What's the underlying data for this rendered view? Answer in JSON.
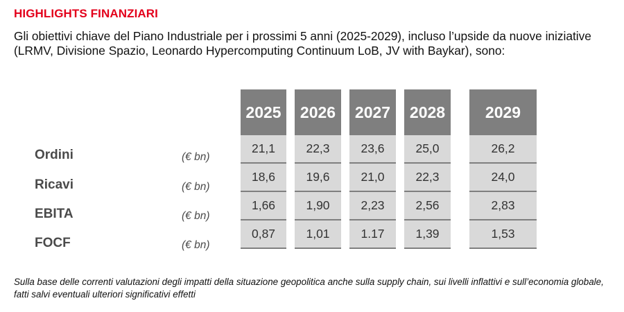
{
  "header": {
    "title": "HIGHLIGHTS FINANZIARI",
    "intro": "Gli obiettivi chiave del Piano Industriale per i prossimi 5 anni (2025-2029), incluso l’upside da nuove iniziative (LRMV, Divisione Spazio, Leonardo Hypercomputing Continuum LoB, JV with Baykar), sono:"
  },
  "table": {
    "years": [
      "2025",
      "2026",
      "2027",
      "2028",
      "2029"
    ],
    "rows": [
      {
        "label": "Ordini",
        "unit": "(€ bn)",
        "values": [
          "21,1",
          "22,3",
          "23,6",
          "25,0",
          "26,2"
        ]
      },
      {
        "label": "Ricavi",
        "unit": "(€ bn)",
        "values": [
          "18,6",
          "19,6",
          "21,0",
          "22,3",
          "24,0"
        ]
      },
      {
        "label": "EBITA",
        "unit": "(€ bn)",
        "values": [
          "1,66",
          "1,90",
          "2,23",
          "2,56",
          "2,83"
        ]
      },
      {
        "label": "FOCF",
        "unit": "(€ bn)",
        "values": [
          "0,87",
          "1,01",
          "1.17",
          "1,39",
          "1,53"
        ]
      }
    ]
  },
  "footnote": "Sulla base delle correnti valutazioni degli impatti della situazione geopolitica anche sulla supply chain, sui livelli inflattivi e sull’economia globale, fatti salvi eventuali ulteriori significativi effetti"
}
